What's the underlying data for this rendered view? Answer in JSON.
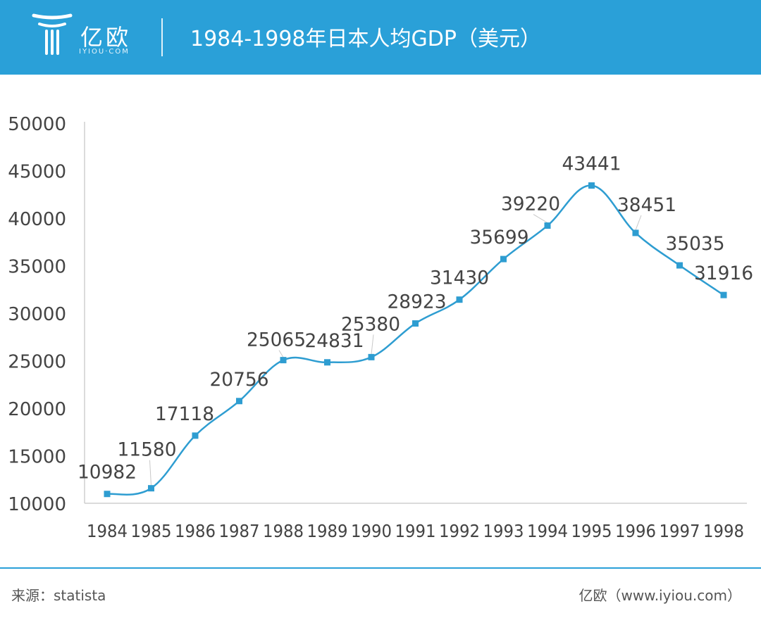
{
  "header": {
    "logo_text": "亿欧",
    "logo_sub": "IYIOU·COM",
    "title": "1984-1998年日本人均GDP（美元）"
  },
  "colors": {
    "brand": "#2aa0d8",
    "line": "#2e9dd1",
    "text": "#333333"
  },
  "chart_data": {
    "type": "line",
    "title": "1984-1998年日本人均GDP（美元）",
    "xlabel": "",
    "ylabel": "",
    "categories": [
      "1984",
      "1985",
      "1986",
      "1987",
      "1988",
      "1989",
      "1990",
      "1991",
      "1992",
      "1993",
      "1994",
      "1995",
      "1996",
      "1997",
      "1998"
    ],
    "series": [
      {
        "name": "人均GDP",
        "values": [
          10982,
          11580,
          17118,
          20756,
          25065,
          24831,
          25380,
          28923,
          31430,
          35699,
          39220,
          43441,
          38451,
          35035,
          31916
        ]
      }
    ],
    "ylim": [
      10000,
      50000
    ],
    "yticks": [
      "10000",
      "15000",
      "20000",
      "25000",
      "30000",
      "35000",
      "40000",
      "45000",
      "50000"
    ],
    "data_labels": [
      "10982",
      "11580",
      "17118",
      "20756",
      "25065",
      "24831",
      "25380",
      "28923",
      "31430",
      "35699",
      "39220",
      "43441",
      "38451",
      "35035",
      "31916"
    ],
    "grid": false,
    "legend": "none"
  },
  "footer": {
    "source": "来源：statista",
    "site": "亿欧（www.iyiou.com）"
  }
}
